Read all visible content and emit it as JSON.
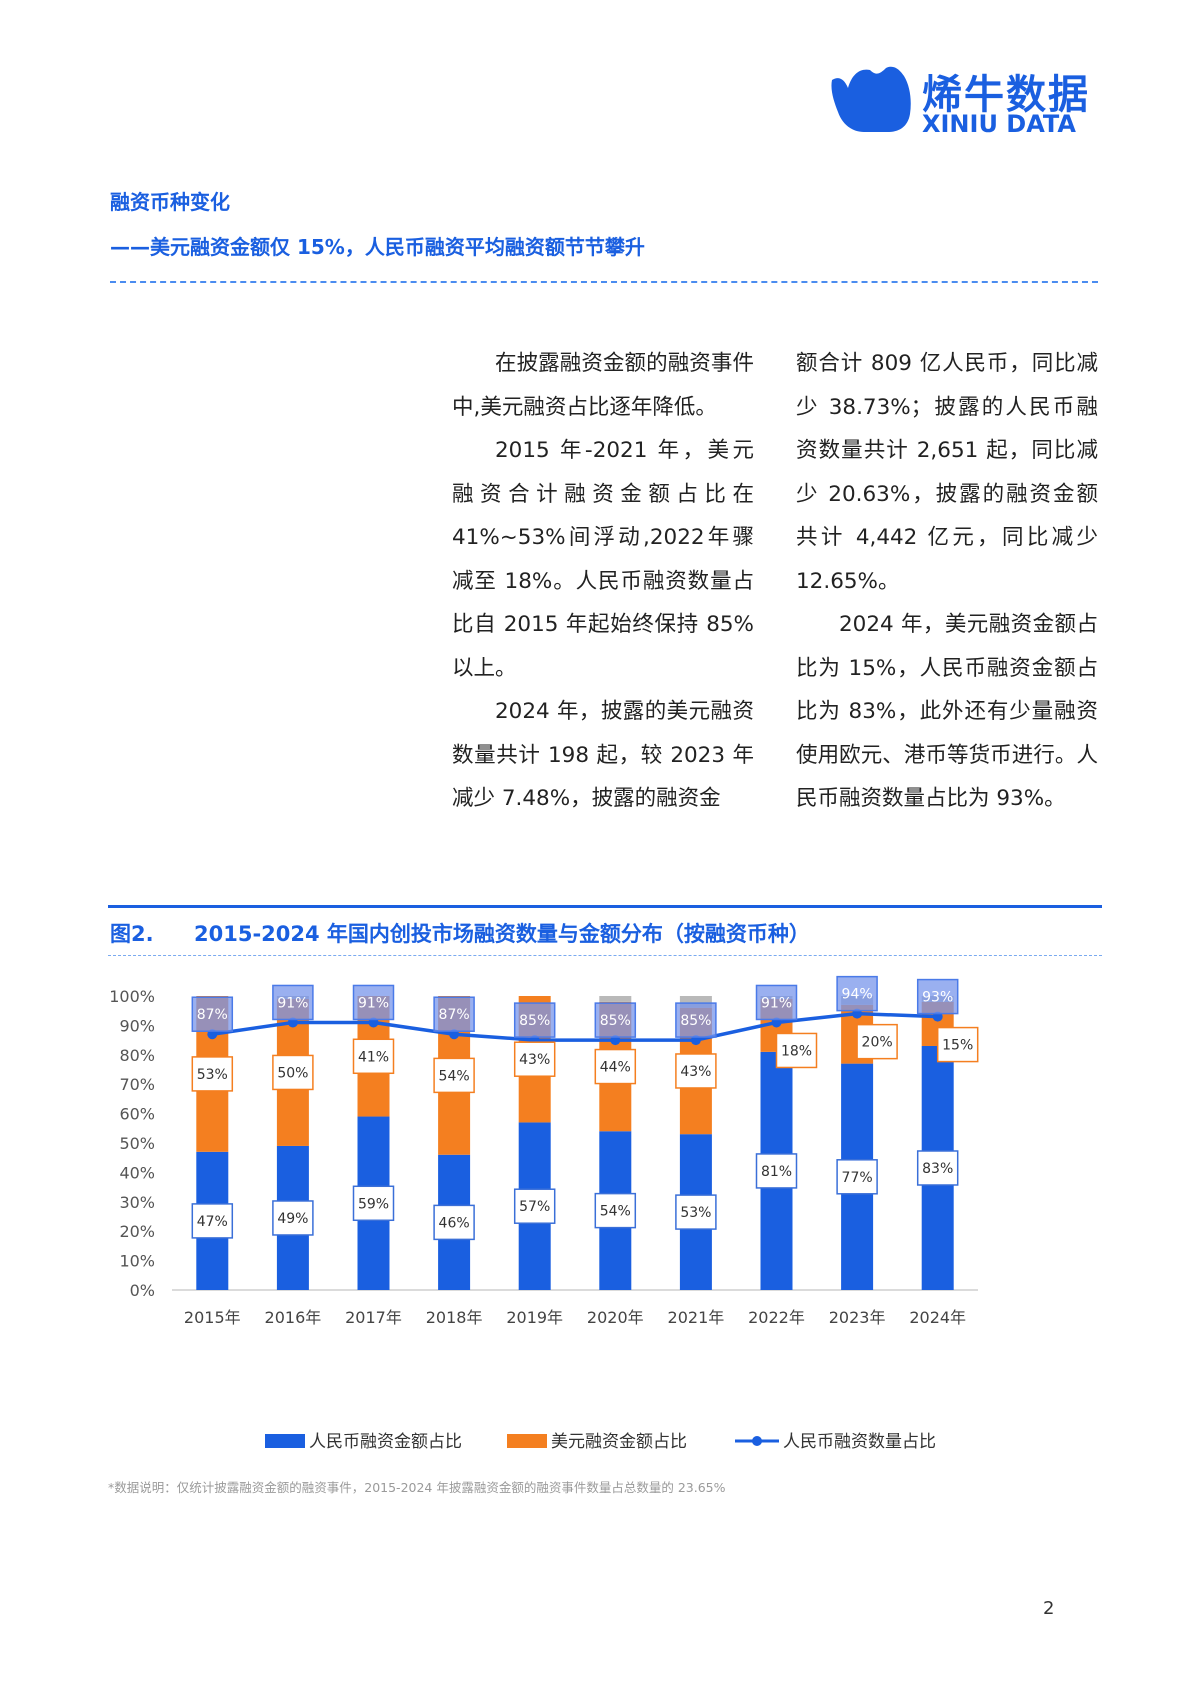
{
  "logo": {
    "cn": "烯牛数据",
    "en": "XINIU DATA",
    "color": "#1a5fe0"
  },
  "section": {
    "title": "融资币种变化",
    "subtitle": "——美元融资金额仅 15%，人民币融资平均融资额节节攀升"
  },
  "body": {
    "col1": [
      "在披露融资金额的融资事件中,美元融资占比逐年降低。",
      "2015 年-2021 年，美元融资合计融资金额占比在 41%~53%间浮动,2022年骤减至 18%。人民币融资数量占比自 2015 年起始终保持 85%以上。",
      "2024 年，披露的美元融资数量共计 198 起，较 2023 年减少 7.48%，披露的融资金"
    ],
    "col2": [
      "额合计 809 亿人民币，同比减少 38.73%；披露的人民币融资数量共计 2,651 起，同比减少 20.63%，披露的融资金额共计 4,442 亿元，同比减少 12.65%。",
      "2024 年，美元融资金额占比为 15%，人民币融资金额占比为 83%，此外还有少量融资使用欧元、港币等货币进行。人民币融资数量占比为 93%。"
    ]
  },
  "figure": {
    "label": "图2.",
    "title": "2015-2024 年国内创投市场融资数量与金额分布（按融资币种）"
  },
  "chart_data": {
    "type": "bar",
    "stacked": true,
    "categories": [
      "2015年",
      "2016年",
      "2017年",
      "2018年",
      "2019年",
      "2020年",
      "2021年",
      "2022年",
      "2023年",
      "2024年"
    ],
    "series": [
      {
        "name": "人民币融资金额占比",
        "kind": "bar",
        "color": "#1a5fe0",
        "values": [
          47,
          49,
          59,
          46,
          57,
          54,
          53,
          81,
          77,
          83
        ]
      },
      {
        "name": "美元融资金额占比",
        "kind": "bar",
        "color": "#f47f20",
        "values": [
          53,
          50,
          41,
          54,
          43,
          44,
          43,
          18,
          20,
          15
        ]
      },
      {
        "name": "人民币融资数量占比",
        "kind": "line",
        "color": "#1a5fe0",
        "values": [
          87,
          91,
          91,
          87,
          85,
          85,
          85,
          91,
          94,
          93
        ]
      }
    ],
    "y_ticks": [
      "0%",
      "10%",
      "20%",
      "30%",
      "40%",
      "50%",
      "60%",
      "70%",
      "80%",
      "90%",
      "100%"
    ],
    "ylim": [
      0,
      100
    ],
    "unit": "%",
    "legend": "bottom"
  },
  "note": "*数据说明：仅统计披露融资金额的融资事件，2015-2024 年披露融资金额的融资事件数量占总数量的 23.65%",
  "page_number": "2"
}
